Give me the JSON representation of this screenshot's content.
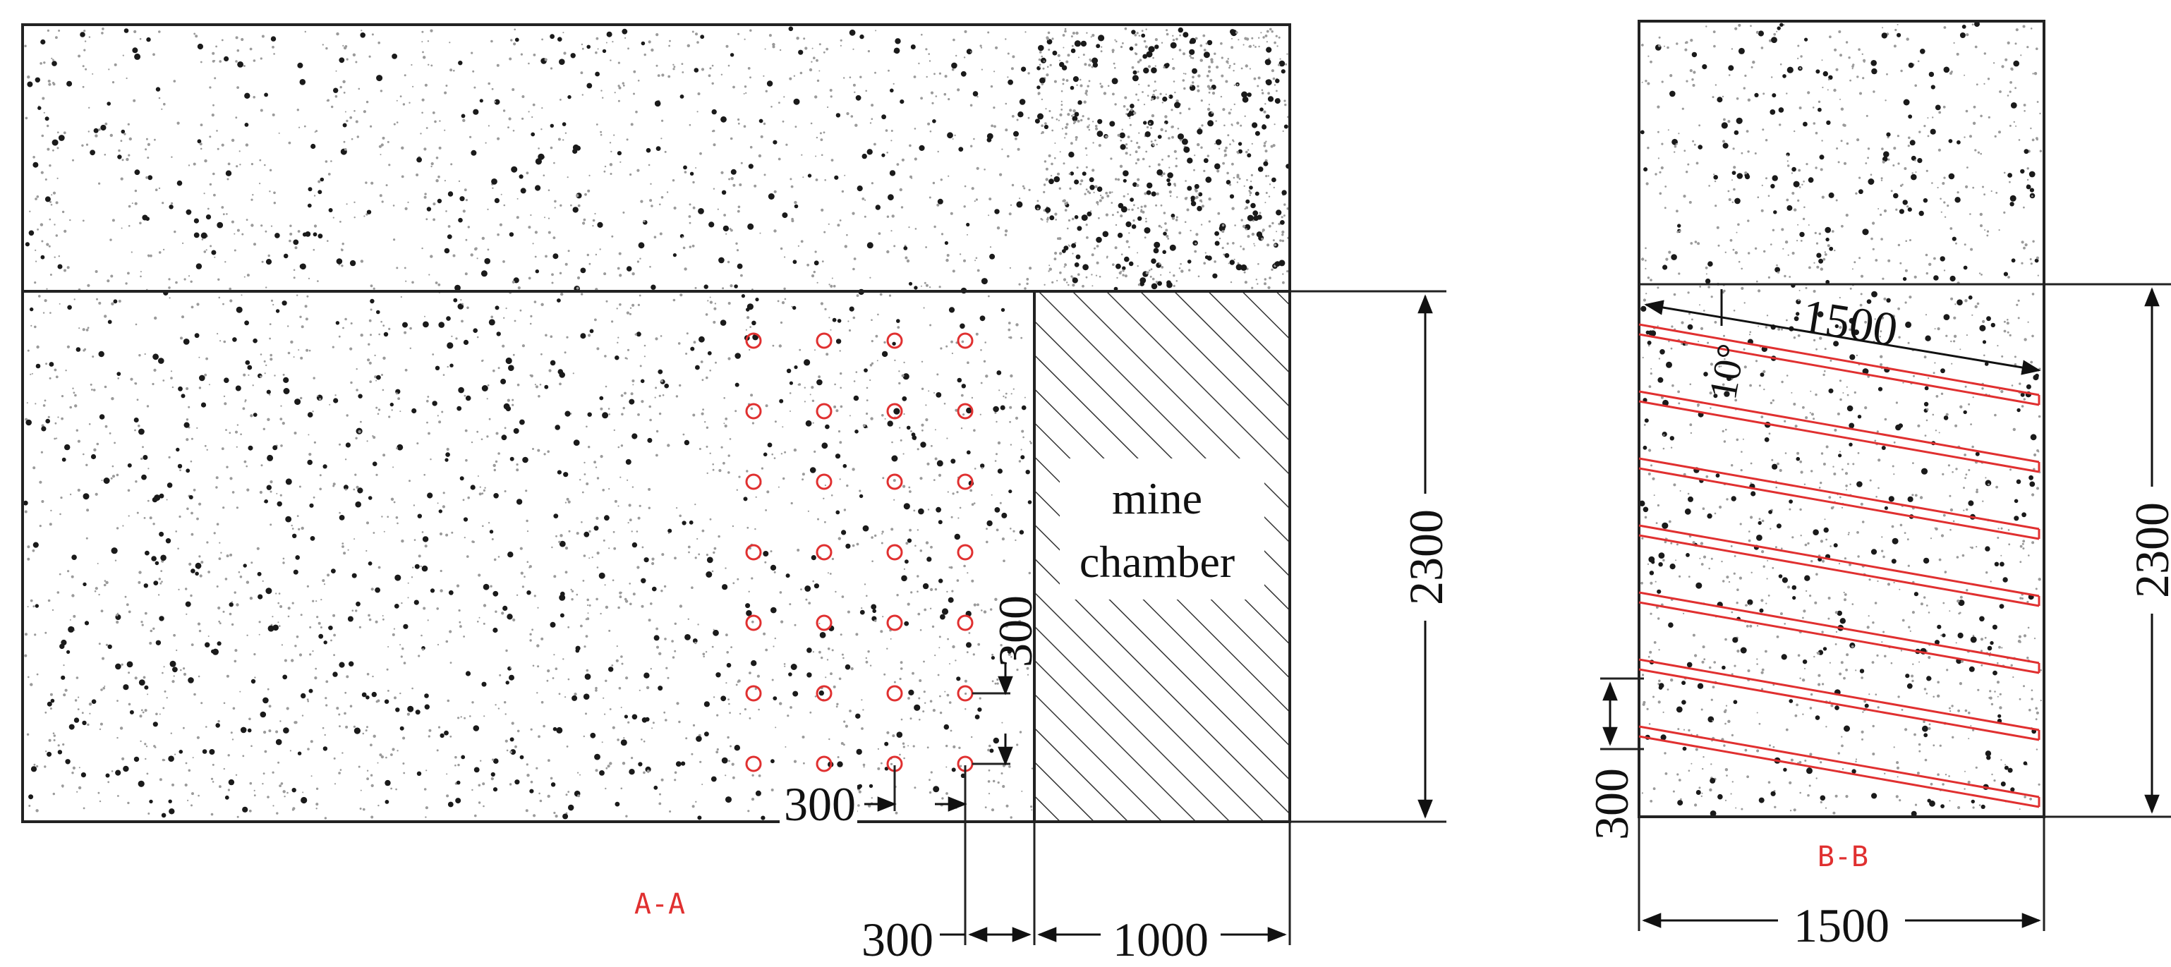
{
  "colors": {
    "outline": "#222222",
    "rock_speckle": "#1a1a1a",
    "borehole": "#e03030",
    "hatch": "#333333",
    "section_label": "#e03030"
  },
  "section_aa": {
    "label": "A-A",
    "chamber_label_line1": "mine",
    "chamber_label_line2": "chamber",
    "dim_height": "2300",
    "dim_spacing_vertical": "300",
    "dim_spacing_horizontal": "300",
    "dim_offset": "300",
    "dim_chamber_width": "1000",
    "borehole_grid": {
      "columns": 4,
      "rows": 7
    }
  },
  "section_bb": {
    "label": "B-B",
    "dim_height": "2300",
    "dim_hole_length": "1500",
    "dim_angle": "10°",
    "dim_spacing": "300",
    "dim_width": "1500",
    "hole_count": 7
  }
}
